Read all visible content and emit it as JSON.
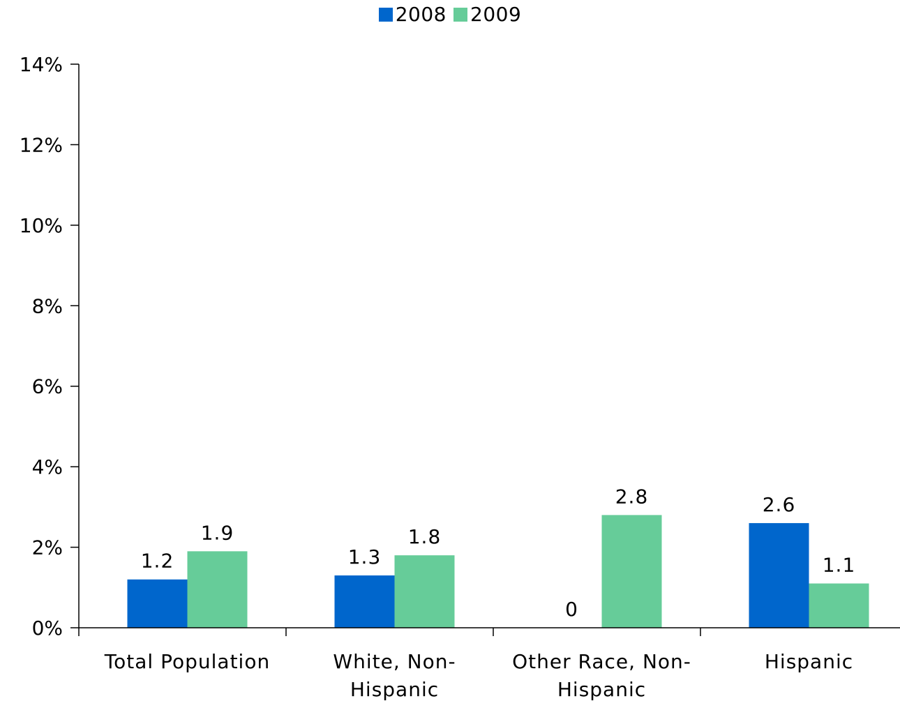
{
  "chart_data": {
    "type": "bar",
    "categories": [
      "Total Population",
      "White, Non-Hispanic",
      "Other Race, Non-Hispanic",
      "Hispanic"
    ],
    "category_lines": [
      [
        "Total Population"
      ],
      [
        "White, Non-",
        "Hispanic"
      ],
      [
        "Other Race, Non-",
        "Hispanic"
      ],
      [
        "Hispanic"
      ]
    ],
    "series": [
      {
        "name": "2008",
        "color": "#0066CC",
        "values": [
          1.2,
          1.3,
          0,
          2.6
        ],
        "labels": [
          "1.2",
          "1.3",
          "0",
          "2.6"
        ]
      },
      {
        "name": "2009",
        "color": "#66CC99",
        "values": [
          1.9,
          1.8,
          2.8,
          1.1
        ],
        "labels": [
          "1.9",
          "1.8",
          "2.8",
          "1.1"
        ]
      }
    ],
    "ylim": [
      0,
      14
    ],
    "yticks": [
      0,
      2,
      4,
      6,
      8,
      10,
      12,
      14
    ],
    "ytick_labels": [
      "0%",
      "2%",
      "4%",
      "6%",
      "8%",
      "10%",
      "12%",
      "14%"
    ],
    "title": "",
    "xlabel": "",
    "ylabel": "",
    "grid": false,
    "legend_position": "top-center"
  }
}
